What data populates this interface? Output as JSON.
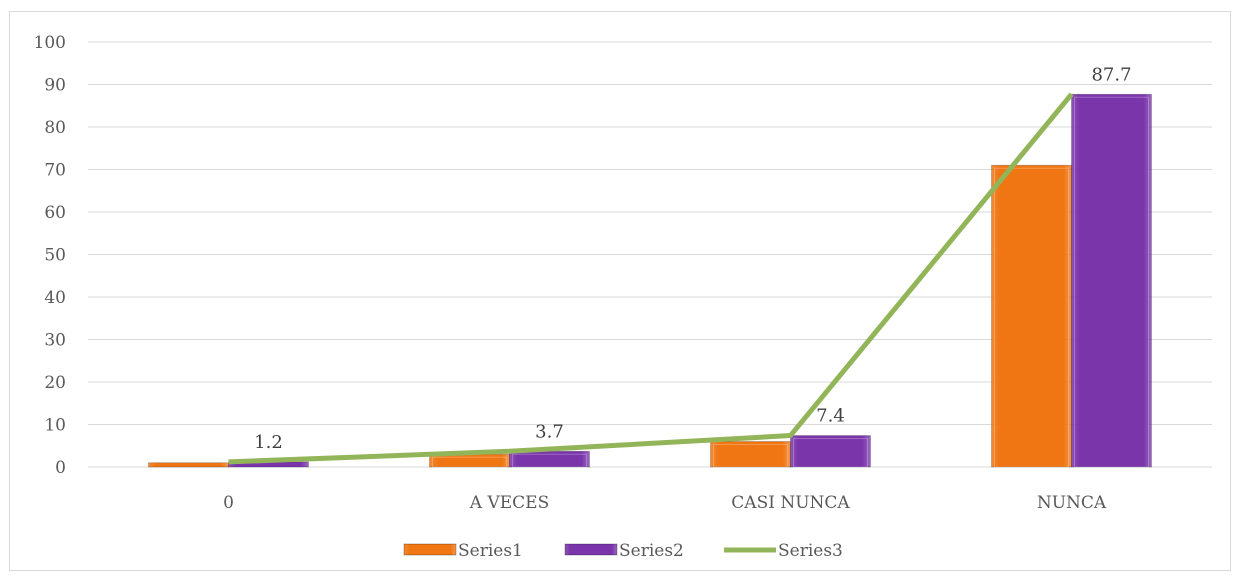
{
  "chart_data": {
    "type": "bar",
    "categories": [
      "0",
      "A VECES",
      "CASI NUNCA",
      "NUNCA"
    ],
    "series": [
      {
        "name": "Series1",
        "type": "bar",
        "color": "#f07613",
        "values": [
          1,
          3,
          6,
          71
        ]
      },
      {
        "name": "Series2",
        "type": "bar",
        "color": "#7a35ab",
        "values": [
          1.2,
          3.7,
          7.4,
          87.7
        ]
      },
      {
        "name": "Series3",
        "type": "line",
        "color": "#93b55a",
        "values": [
          1.2,
          3.7,
          7.4,
          87.7
        ]
      }
    ],
    "data_labels": [
      "1.2",
      "3.7",
      "7.4",
      "87.7"
    ],
    "y_ticks": [
      "0",
      "10",
      "20",
      "30",
      "40",
      "50",
      "60",
      "70",
      "80",
      "90",
      "100"
    ],
    "ylim": [
      0,
      100
    ],
    "grid": true,
    "legend_position": "bottom",
    "title": "",
    "xlabel": "",
    "ylabel": ""
  }
}
